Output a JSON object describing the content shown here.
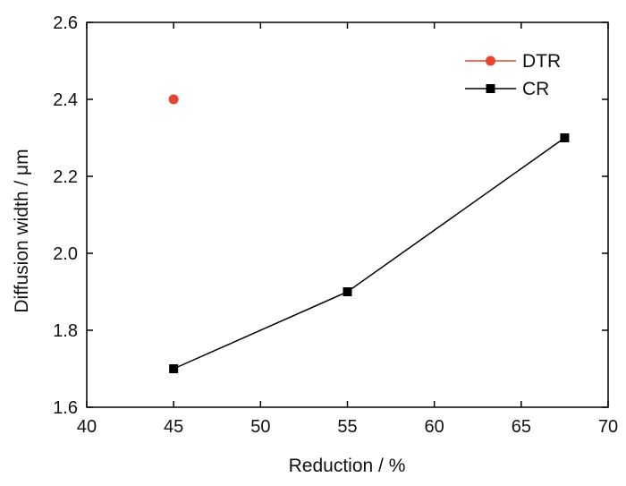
{
  "chart_data": {
    "type": "line",
    "title": "",
    "xlabel": "Reduction / %",
    "ylabel": "Diffusion width / μm",
    "xlim": [
      40,
      70
    ],
    "ylim": [
      1.6,
      2.6
    ],
    "x_ticks": [
      "40",
      "45",
      "50",
      "55",
      "60",
      "65",
      "70"
    ],
    "y_ticks": [
      "1.6",
      "1.8",
      "2.0",
      "2.2",
      "2.4",
      "2.6"
    ],
    "x_tick_values": [
      40,
      45,
      50,
      55,
      60,
      65,
      70
    ],
    "y_tick_values": [
      1.6,
      1.8,
      2.0,
      2.2,
      2.4,
      2.6
    ],
    "grid": false,
    "legend_position": "top-right",
    "series": [
      {
        "name": "DTR",
        "marker": "circle",
        "color": "#e8432e",
        "x": [
          45
        ],
        "y": [
          2.4
        ]
      },
      {
        "name": "CR",
        "marker": "square",
        "color": "#000000",
        "x": [
          45,
          55,
          67.5
        ],
        "y": [
          1.7,
          1.9,
          2.3
        ]
      }
    ]
  }
}
